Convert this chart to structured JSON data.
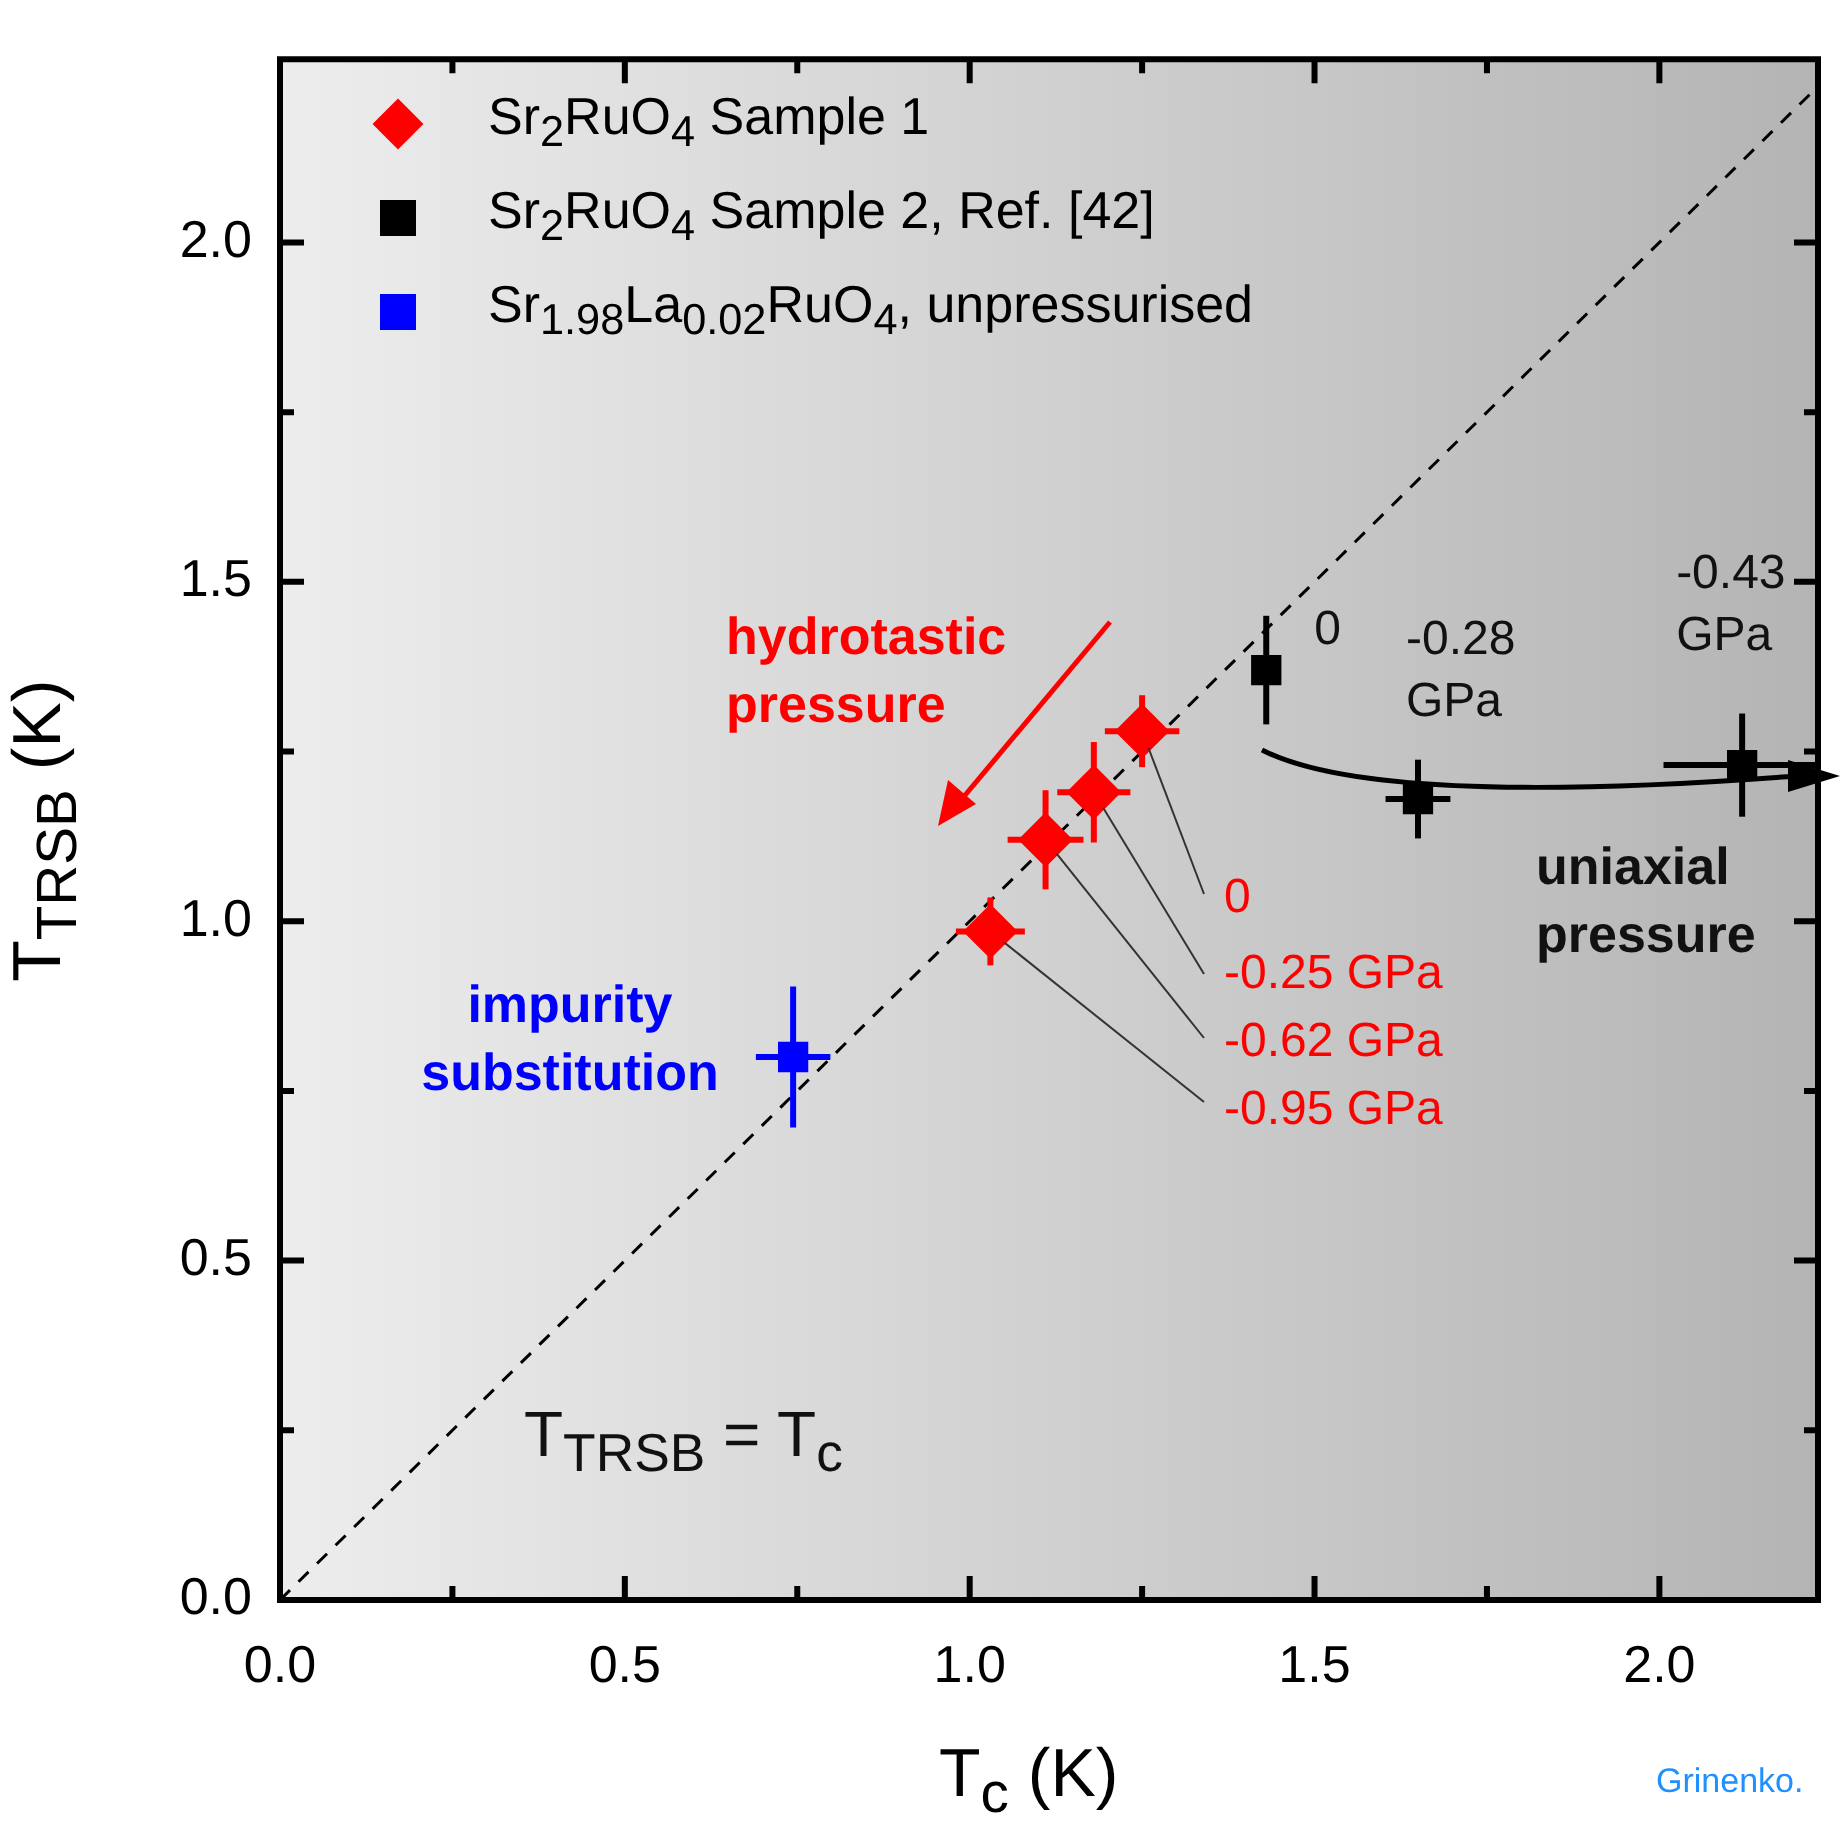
{
  "chart_data": {
    "type": "scatter",
    "xlabel": "T$_{c}$ (K)",
    "ylabel": "T$_{TRSB}$ (K)",
    "xlim": [
      0,
      2.23
    ],
    "ylim": [
      0,
      2.27
    ],
    "xticks": [
      {
        "value": 0,
        "label": "0.0"
      },
      {
        "value": 0.25,
        "label": null
      },
      {
        "value": 0.5,
        "label": "0.5"
      },
      {
        "value": 0.75,
        "label": null
      },
      {
        "value": 1,
        "label": "1.0"
      },
      {
        "value": 1.25,
        "label": null
      },
      {
        "value": 1.5,
        "label": "1.5"
      },
      {
        "value": 1.75,
        "label": null
      },
      {
        "value": 2,
        "label": "2.0"
      }
    ],
    "yticks": [
      {
        "value": 0,
        "label": "0.0"
      },
      {
        "value": 0.25,
        "label": null
      },
      {
        "value": 0.5,
        "label": "0.5"
      },
      {
        "value": 0.75,
        "label": null
      },
      {
        "value": 1,
        "label": "1.0"
      },
      {
        "value": 1.25,
        "label": null
      },
      {
        "value": 1.5,
        "label": "1.5"
      },
      {
        "value": 1.75,
        "label": null
      },
      {
        "value": 2,
        "label": "2.0"
      }
    ],
    "grid": false,
    "legend": "top left",
    "series": [
      {
        "name": "Sr$_{2}$RuO$_{4}$ Sample 1",
        "color": "#ff0000",
        "marker": "diamond",
        "x": [
          1.03,
          1.11,
          1.18,
          1.25
        ],
        "values": [
          0.985,
          1.12,
          1.19,
          1.28
        ],
        "errors": [
          0.05,
          0.073,
          0.074,
          0.053
        ],
        "xerrors": [
          0.05,
          0.055,
          0.053,
          0.054
        ]
      },
      {
        "name": "Sr$_{2}$RuO$_{4}$ Sample 2, Ref. [42]",
        "color": "#000000",
        "marker": "square",
        "x": [
          1.43,
          1.65,
          2.12
        ],
        "values": [
          1.37,
          1.18,
          1.23
        ],
        "errors": [
          0.08,
          0.058,
          0.076
        ],
        "xerrors": [
          null,
          0.047,
          0.114
        ]
      },
      {
        "name": "Sr$_{1.98}$La$_{0.02}$RuO$_{4}$, unpressurised",
        "color": "#0000ff",
        "marker": "square",
        "x": [
          0.744
        ],
        "values": [
          0.8
        ],
        "errors": [
          0.104
        ],
        "xerrors": [
          0.054
        ]
      },
      {
        "type": "line",
        "color": "#000000",
        "marker": "none",
        "line_style": "dashed",
        "x": [
          0,
          2.23
        ],
        "values": [
          0,
          2.23
        ]
      }
    ],
    "annotations": [
      "hydrotastic pressure",
      "uniaxial pressure",
      "impurity substitution",
      "T$_{TRSB}$ = T$_{c}$",
      {
        "text": "0",
        "x": 1.25,
        "y": 1.28
      },
      {
        "text": "-0.25 GPa",
        "x": 1.18,
        "y": 1.19
      },
      {
        "text": "-0.62 GPa",
        "x": 1.11,
        "y": 1.12
      },
      {
        "text": "-0.95 GPa",
        "x": 1.03,
        "y": 0.985
      },
      {
        "text": "0",
        "x": 1.43,
        "y": 1.37
      },
      {
        "text": "-0.28 GPa",
        "x": 1.65,
        "y": 1.18
      },
      {
        "text": "-0.43 GPa",
        "x": 2.12,
        "y": 1.23
      },
      "Grinenko."
    ]
  }
}
